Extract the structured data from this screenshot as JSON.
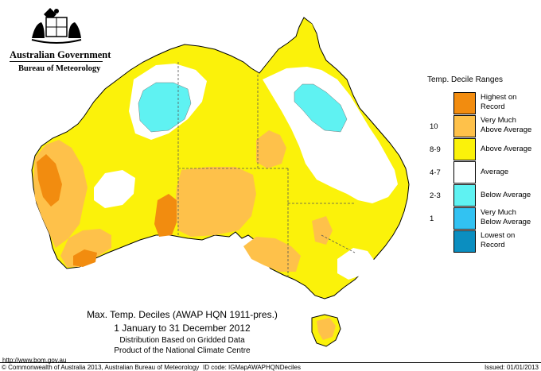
{
  "header": {
    "government": "Australian Government",
    "agency": "Bureau of Meteorology"
  },
  "legend": {
    "title": "Temp. Decile Ranges",
    "items": [
      {
        "code": "",
        "label": "Highest on Record",
        "color": "#f28c0f"
      },
      {
        "code": "10",
        "label": "Very Much Above Average",
        "color": "#fec14a"
      },
      {
        "code": "8-9",
        "label": "Above Average",
        "color": "#fbf20a"
      },
      {
        "code": "4-7",
        "label": "Average",
        "color": "#ffffff"
      },
      {
        "code": "2-3",
        "label": "Below Average",
        "color": "#5ff2f2"
      },
      {
        "code": "1",
        "label": "Very Much Below Average",
        "color": "#32c2f2"
      },
      {
        "code": "",
        "label": "Lowest on Record",
        "color": "#0b8ec0"
      }
    ]
  },
  "caption": {
    "title": "Max. Temp. Deciles (AWAP HQN 1911-pres.)",
    "period": "1 January to 31 December 2012",
    "line3": "Distribution Based on Gridded Data",
    "line4": "Product of the National Climate Centre"
  },
  "footer": {
    "url": "http://www.bom.gov.au",
    "copyright": "© Commonwealth of Australia 2013, Australian Bureau of Meteorology",
    "id_code": "ID code: IGMapAWAPHQNDeciles",
    "issued": "Issued: 01/01/2013"
  }
}
